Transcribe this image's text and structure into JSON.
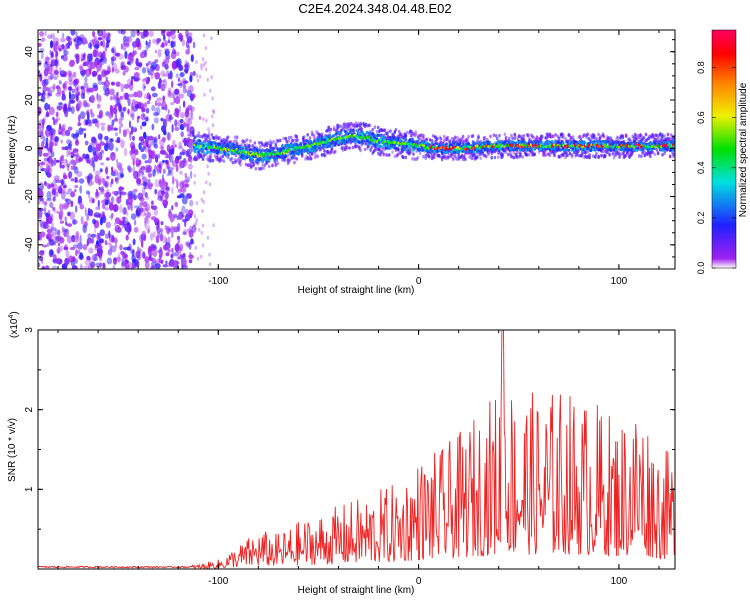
{
  "figure": {
    "title": "C2E4.2024.348.04.48.E02"
  },
  "chart_data": [
    {
      "type": "heatmap",
      "xlabel": "Height of straight line (km)",
      "ylabel": "Frequency (Hz)",
      "xlim": [
        -190,
        128
      ],
      "ylim": [
        -50,
        49
      ],
      "x_ticks": [
        -100,
        0,
        100
      ],
      "y_ticks": [
        -40,
        -20,
        0,
        20,
        40
      ],
      "colorbar": {
        "label": "Normalized spectral amplitude",
        "range": [
          0,
          0.95
        ],
        "ticks": [
          0.0,
          0.2,
          0.4,
          0.6,
          0.8
        ],
        "colormap": "rainbow (white → violet → blue → cyan → green → yellow → red → magenta)"
      },
      "noise_region": {
        "x_range": [
          -190,
          -112
        ],
        "description_hidden": true
      },
      "ridge_centerline": {
        "x": [
          -112,
          -100,
          -90,
          -80,
          -70,
          -60,
          -50,
          -40,
          -35,
          -30,
          -25,
          -20,
          -10,
          0,
          10,
          20,
          40,
          60,
          80,
          100,
          128
        ],
        "frequency_hz": [
          1,
          0,
          -1,
          -3,
          -2,
          0,
          2,
          4,
          5,
          5,
          4,
          3,
          2,
          1,
          0,
          0,
          1,
          1,
          1,
          1,
          1
        ]
      }
    },
    {
      "type": "line",
      "xlabel": "Height of straight line (km)",
      "ylabel": "SNR (10 * v/v)",
      "y_multiplier_label": "(x10",
      "y_multiplier_exp": "4",
      "y_multiplier_close": ")",
      "xlim": [
        -190,
        128
      ],
      "ylim": [
        0,
        3
      ],
      "x_ticks": [
        -100,
        0,
        100
      ],
      "y_ticks": [
        1,
        2,
        3
      ],
      "color": "#ee2222",
      "envelope": {
        "x": [
          -190,
          -120,
          -110,
          -100,
          -90,
          -80,
          -70,
          -60,
          -50,
          -40,
          -30,
          -20,
          -10,
          0,
          10,
          20,
          30,
          40,
          42,
          45,
          50,
          60,
          70,
          80,
          90,
          100,
          110,
          120,
          128
        ],
        "peak_y": [
          0.03,
          0.03,
          0.06,
          0.12,
          0.3,
          0.5,
          0.45,
          0.6,
          0.7,
          0.8,
          0.9,
          1.0,
          1.1,
          1.4,
          1.5,
          1.7,
          2.0,
          2.3,
          3.0,
          2.4,
          2.3,
          2.2,
          2.3,
          2.2,
          2.1,
          1.9,
          2.2,
          1.6,
          1.4
        ]
      }
    }
  ]
}
